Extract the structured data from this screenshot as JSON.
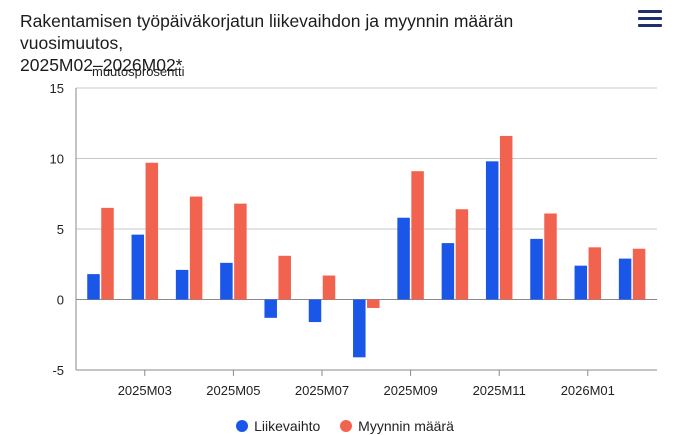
{
  "title_line1": "Rakentamisen työpäiväkorjatun liikevaihdon ja myynnin määrän vuosimuutos,",
  "title_line2": "2025M02–2026M02*",
  "menu_icon": "hamburger-menu-icon",
  "chart_data": {
    "type": "bar",
    "ylabel": "muutosprosentti",
    "ylim": [
      -5,
      15
    ],
    "yticks": [
      -5,
      0,
      5,
      10,
      15
    ],
    "grid": true,
    "legend_position": "bottom",
    "categories": [
      "2025M02",
      "2025M03",
      "2025M04",
      "2025M05",
      "2025M06",
      "2025M07",
      "2025M08",
      "2025M09",
      "2025M10",
      "2025M11",
      "2025M12",
      "2026M01",
      "2026M02"
    ],
    "xtick_labels": [
      "2025M03",
      "2025M05",
      "2025M07",
      "2025M09",
      "2025M11",
      "2026M01"
    ],
    "series": [
      {
        "name": "Liikevaihto",
        "color": "#1a57e8",
        "values": [
          1.8,
          4.6,
          2.1,
          2.6,
          -1.3,
          -1.6,
          -4.1,
          5.8,
          4.0,
          9.8,
          4.3,
          2.4,
          2.9
        ]
      },
      {
        "name": "Myynnin määrä",
        "color": "#f2634f",
        "values": [
          6.5,
          9.7,
          7.3,
          6.8,
          3.1,
          1.7,
          -0.6,
          9.1,
          6.4,
          11.6,
          6.1,
          3.7,
          3.6
        ]
      }
    ]
  }
}
